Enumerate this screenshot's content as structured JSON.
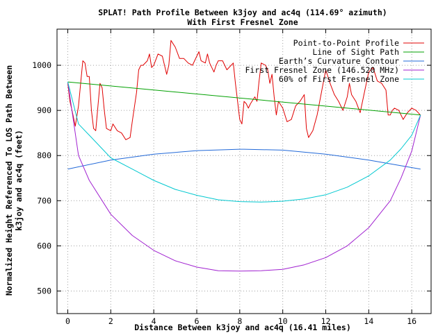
{
  "chart_data": {
    "type": "line",
    "title_line1": "SPLAT! Path Profile Between k3joy and ac4q (114.69° azimuth)",
    "title_line2": "With First Fresnel Zone",
    "xlabel": "Distance Between k3joy and ac4q (16.41 miles)",
    "ylabel_line1": "Normalized Height Referenced To LOS Path Between",
    "ylabel_line2": "k3joy and ac4q (feet)",
    "xlim": [
      -0.5,
      16.9
    ],
    "ylim": [
      450,
      1080
    ],
    "x_ticks": [
      "0",
      "2",
      "4",
      "6",
      "8",
      "10",
      "12",
      "14",
      "16"
    ],
    "x_tick_values": [
      0,
      2,
      4,
      6,
      8,
      10,
      12,
      14,
      16
    ],
    "y_ticks": [
      "500",
      "600",
      "700",
      "800",
      "900",
      "1000"
    ],
    "y_tick_values": [
      500,
      600,
      700,
      800,
      900,
      1000
    ],
    "grid": true,
    "legend_position": "top-right",
    "series": [
      {
        "name": "Point-to-Point Profile",
        "color": "#e00000",
        "x": [
          0,
          0.1,
          0.2,
          0.35,
          0.5,
          0.6,
          0.7,
          0.8,
          0.9,
          1.0,
          1.1,
          1.2,
          1.3,
          1.5,
          1.6,
          1.7,
          1.8,
          2.0,
          2.1,
          2.3,
          2.5,
          2.7,
          2.9,
          3.0,
          3.2,
          3.3,
          3.4,
          3.5,
          3.7,
          3.8,
          3.9,
          4.0,
          4.2,
          4.4,
          4.6,
          4.7,
          4.8,
          5.0,
          5.2,
          5.4,
          5.6,
          5.8,
          6.0,
          6.1,
          6.2,
          6.4,
          6.5,
          6.6,
          6.8,
          6.9,
          7.0,
          7.2,
          7.4,
          7.6,
          7.7,
          7.8,
          7.9,
          8.0,
          8.1,
          8.2,
          8.3,
          8.4,
          8.5,
          8.7,
          8.8,
          8.9,
          9.0,
          9.2,
          9.3,
          9.4,
          9.5,
          9.6,
          9.7,
          9.8,
          10.0,
          10.2,
          10.4,
          10.6,
          10.8,
          11.0,
          11.1,
          11.2,
          11.4,
          11.6,
          11.8,
          12.0,
          12.2,
          12.4,
          12.6,
          12.8,
          13.0,
          13.1,
          13.2,
          13.4,
          13.6,
          13.8,
          14.0,
          14.2,
          14.4,
          14.6,
          14.8,
          14.9,
          15.0,
          15.1,
          15.2,
          15.4,
          15.6,
          15.8,
          16.0,
          16.2,
          16.4
        ],
        "y": [
          960,
          920,
          900,
          865,
          910,
          960,
          1010,
          1005,
          975,
          975,
          900,
          860,
          855,
          960,
          950,
          900,
          860,
          855,
          870,
          855,
          850,
          835,
          840,
          875,
          940,
          990,
          1000,
          1000,
          1010,
          1025,
          995,
          1000,
          1025,
          1020,
          980,
          1000,
          1055,
          1040,
          1015,
          1015,
          1005,
          1000,
          1020,
          1030,
          1010,
          1005,
          1025,
          1005,
          985,
          1000,
          1010,
          1010,
          990,
          1000,
          1005,
          960,
          920,
          880,
          870,
          920,
          915,
          905,
          915,
          930,
          920,
          965,
          1005,
          1000,
          990,
          960,
          980,
          930,
          890,
          920,
          905,
          875,
          880,
          910,
          920,
          935,
          860,
          840,
          855,
          890,
          940,
          990,
          960,
          935,
          920,
          900,
          930,
          960,
          935,
          920,
          895,
          940,
          985,
          995,
          965,
          960,
          945,
          890,
          890,
          900,
          905,
          900,
          880,
          895,
          905,
          900,
          890
        ],
        "dash": false
      },
      {
        "name": "Line of Sight Path",
        "color": "#00a000",
        "x": [
          0,
          16.41
        ],
        "y": [
          963,
          890
        ],
        "dash": false
      },
      {
        "name": "Earth’s Curvature Contour",
        "color": "#2068d8",
        "x": [
          0,
          2,
          4,
          6,
          8,
          8.2,
          10,
          12,
          14,
          16.41
        ],
        "y": [
          770,
          790,
          803,
          811,
          814,
          814,
          812,
          803,
          790,
          770
        ],
        "dash": false
      },
      {
        "name": "First Fresnel Zone (146.520 MHz)",
        "color": "#a020d0",
        "x": [
          0,
          0.5,
          1,
          2,
          3,
          4,
          5,
          6,
          7,
          8,
          9,
          10,
          11,
          12,
          13,
          14,
          15,
          15.5,
          16,
          16.41
        ],
        "y": [
          963,
          800,
          745,
          670,
          623,
          590,
          567,
          553,
          545,
          544,
          545,
          548,
          558,
          574,
          600,
          640,
          700,
          750,
          810,
          890
        ],
        "dash": false
      },
      {
        "name": "60% of First Fresnel Zone",
        "color": "#00c8d0",
        "x": [
          0,
          0.5,
          1,
          2,
          3,
          4,
          5,
          6,
          7,
          8,
          9,
          10,
          11,
          12,
          13,
          14,
          15,
          15.5,
          16,
          16.41
        ],
        "y": [
          963,
          870,
          845,
          795,
          770,
          745,
          725,
          712,
          702,
          698,
          697,
          699,
          704,
          713,
          730,
          755,
          790,
          815,
          845,
          890
        ],
        "dash": false
      }
    ]
  }
}
